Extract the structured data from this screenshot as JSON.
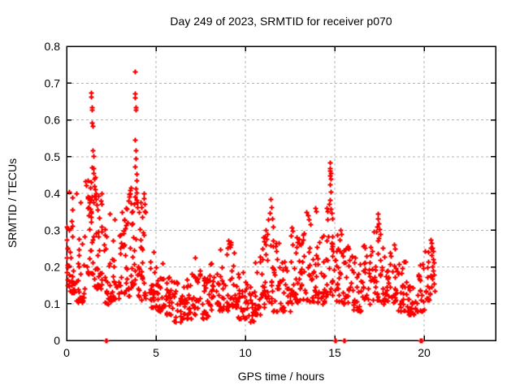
{
  "title": "Day 249 of 2023, SRMTID for receiver p070",
  "x_axis": {
    "label": "GPS time / hours",
    "range": [
      0,
      24
    ],
    "ticks": [
      {
        "v": 0,
        "label": "0"
      },
      {
        "v": 5,
        "label": "5"
      },
      {
        "v": 10,
        "label": "10"
      },
      {
        "v": 15,
        "label": "15"
      },
      {
        "v": 20,
        "label": "20"
      }
    ]
  },
  "y_axis": {
    "label": "SRMTID / TECUs",
    "range": [
      0,
      0.8
    ],
    "ticks": [
      {
        "v": 0,
        "label": "0"
      },
      {
        "v": 0.1,
        "label": "0.1"
      },
      {
        "v": 0.2,
        "label": "0.2"
      },
      {
        "v": 0.3,
        "label": "0.3"
      },
      {
        "v": 0.4,
        "label": "0.4"
      },
      {
        "v": 0.5,
        "label": "0.5"
      },
      {
        "v": 0.6,
        "label": "0.6"
      },
      {
        "v": 0.7,
        "label": "0.7"
      },
      {
        "v": 0.8,
        "label": "0.8"
      }
    ]
  },
  "colors": {
    "marker": "#ff0000",
    "grid": "#b4b4b4",
    "axis": "#000000",
    "text": "#000000",
    "background": "#ffffff"
  },
  "chart_data": {
    "type": "scatter",
    "marker": "plus",
    "title": "Day 249 of 2023, SRMTID for receiver p070",
    "xlabel": "GPS time / hours",
    "ylabel": "SRMTID / TECUs",
    "xlim": [
      0,
      24
    ],
    "ylim": [
      0,
      0.8
    ],
    "grid": true,
    "legend": "none",
    "series_name": "SRMTID",
    "points": [
      [
        0.02,
        0.31
      ],
      [
        0.02,
        0.275
      ],
      [
        0.03,
        0.25
      ],
      [
        0.02,
        0.225
      ],
      [
        0.03,
        0.205
      ],
      [
        0.02,
        0.185
      ],
      [
        0.04,
        0.165
      ],
      [
        0.03,
        0.15
      ],
      [
        0.15,
        0.405
      ],
      [
        0.32,
        0.39
      ],
      [
        0.55,
        0.4
      ],
      [
        0.75,
        0.375
      ],
      [
        1.37,
        0.675
      ],
      [
        1.38,
        0.662
      ],
      [
        1.4,
        0.634
      ],
      [
        1.41,
        0.627
      ],
      [
        1.43,
        0.592
      ],
      [
        1.44,
        0.583
      ],
      [
        1.47,
        0.517
      ],
      [
        1.48,
        0.502
      ],
      [
        1.42,
        0.47
      ],
      [
        1.5,
        0.468
      ],
      [
        1.52,
        0.455
      ],
      [
        1.55,
        0.44
      ],
      [
        1.58,
        0.445
      ],
      [
        1.36,
        0.43
      ],
      [
        1.33,
        0.415
      ],
      [
        1.56,
        0.42
      ],
      [
        1.6,
        0.41
      ],
      [
        1.62,
        0.4
      ],
      [
        1.28,
        0.39
      ],
      [
        1.65,
        0.385
      ],
      [
        1.25,
        0.375
      ],
      [
        1.7,
        0.37
      ],
      [
        1.2,
        0.36
      ],
      [
        1.74,
        0.355
      ],
      [
        2.4,
        0.345
      ],
      [
        2.7,
        0.33
      ],
      [
        3.1,
        0.35
      ],
      [
        3.3,
        0.36
      ],
      [
        3.45,
        0.38
      ],
      [
        3.55,
        0.4
      ],
      [
        3.6,
        0.415
      ],
      [
        3.82,
        0.731
      ],
      [
        3.83,
        0.672
      ],
      [
        3.84,
        0.661
      ],
      [
        3.85,
        0.634
      ],
      [
        3.86,
        0.627
      ],
      [
        3.83,
        0.546
      ],
      [
        3.87,
        0.517
      ],
      [
        3.88,
        0.495
      ],
      [
        3.84,
        0.473
      ],
      [
        3.89,
        0.452
      ],
      [
        3.9,
        0.436
      ],
      [
        3.86,
        0.413
      ],
      [
        3.91,
        0.402
      ],
      [
        3.8,
        0.392
      ],
      [
        3.93,
        0.382
      ],
      [
        3.78,
        0.372
      ],
      [
        3.95,
        0.362
      ],
      [
        3.7,
        0.352
      ],
      [
        4.05,
        0.35
      ],
      [
        4.12,
        0.375
      ],
      [
        4.18,
        0.362
      ],
      [
        4.3,
        0.4
      ],
      [
        4.32,
        0.386
      ],
      [
        4.35,
        0.372
      ],
      [
        4.4,
        0.35
      ],
      [
        7.2,
        0.225
      ],
      [
        9.05,
        0.272
      ],
      [
        9.1,
        0.262
      ],
      [
        9.0,
        0.252
      ],
      [
        10.95,
        0.25
      ],
      [
        11.05,
        0.27
      ],
      [
        11.15,
        0.3
      ],
      [
        11.25,
        0.33
      ],
      [
        11.35,
        0.346
      ],
      [
        11.42,
        0.385
      ],
      [
        11.45,
        0.362
      ],
      [
        11.5,
        0.332
      ],
      [
        11.55,
        0.31
      ],
      [
        12.6,
        0.308
      ],
      [
        12.65,
        0.298
      ],
      [
        12.55,
        0.285
      ],
      [
        13.42,
        0.35
      ],
      [
        13.48,
        0.34
      ],
      [
        13.55,
        0.33
      ],
      [
        13.62,
        0.315
      ],
      [
        13.9,
        0.36
      ],
      [
        13.95,
        0.352
      ],
      [
        14.55,
        0.36
      ],
      [
        14.6,
        0.352
      ],
      [
        14.7,
        0.372
      ],
      [
        14.72,
        0.484
      ],
      [
        14.73,
        0.468
      ],
      [
        14.74,
        0.462
      ],
      [
        14.75,
        0.455
      ],
      [
        14.73,
        0.448
      ],
      [
        14.76,
        0.44
      ],
      [
        14.74,
        0.425
      ],
      [
        14.77,
        0.405
      ],
      [
        14.72,
        0.382
      ],
      [
        14.78,
        0.358
      ],
      [
        14.8,
        0.346
      ],
      [
        14.85,
        0.332
      ],
      [
        15.3,
        0.3
      ],
      [
        15.35,
        0.29
      ],
      [
        17.35,
        0.31
      ],
      [
        17.4,
        0.345
      ],
      [
        17.42,
        0.332
      ],
      [
        17.45,
        0.318
      ],
      [
        17.5,
        0.302
      ],
      [
        17.55,
        0.29
      ],
      [
        18.3,
        0.26
      ],
      [
        18.35,
        0.25
      ],
      [
        20.38,
        0.275
      ],
      [
        20.42,
        0.265
      ],
      [
        20.45,
        0.252
      ],
      [
        20.48,
        0.242
      ],
      [
        20.4,
        0.232
      ],
      [
        20.52,
        0.222
      ],
      [
        20.55,
        0.212
      ],
      [
        20.44,
        0.202
      ],
      [
        20.5,
        0.19
      ],
      [
        20.56,
        0.18
      ],
      [
        20.46,
        0.168
      ],
      [
        20.53,
        0.155
      ],
      [
        20.41,
        0.145
      ],
      [
        20.58,
        0.135
      ]
    ],
    "zero_points": [
      2.18,
      2.22,
      15.0,
      15.05,
      15.5,
      15.55,
      19.78,
      19.82,
      19.86
    ],
    "dense_bands": [
      [
        0.0,
        0.5,
        30,
        0.13,
        0.36
      ],
      [
        0.5,
        1.0,
        26,
        0.1,
        0.3
      ],
      [
        1.0,
        1.5,
        30,
        0.18,
        0.44
      ],
      [
        1.5,
        2.0,
        30,
        0.14,
        0.4
      ],
      [
        2.0,
        2.5,
        26,
        0.1,
        0.33
      ],
      [
        2.5,
        3.0,
        24,
        0.11,
        0.3
      ],
      [
        3.0,
        3.5,
        26,
        0.12,
        0.36
      ],
      [
        3.5,
        4.0,
        30,
        0.14,
        0.42
      ],
      [
        4.0,
        4.5,
        26,
        0.11,
        0.36
      ],
      [
        4.5,
        5.0,
        24,
        0.09,
        0.26
      ],
      [
        5.0,
        5.5,
        24,
        0.08,
        0.22
      ],
      [
        5.5,
        6.0,
        24,
        0.07,
        0.19
      ],
      [
        6.0,
        6.5,
        24,
        0.05,
        0.16
      ],
      [
        6.5,
        7.0,
        24,
        0.06,
        0.17
      ],
      [
        7.0,
        7.5,
        24,
        0.07,
        0.21
      ],
      [
        7.5,
        8.0,
        24,
        0.06,
        0.17
      ],
      [
        8.0,
        8.5,
        24,
        0.08,
        0.22
      ],
      [
        8.5,
        9.0,
        24,
        0.08,
        0.25
      ],
      [
        9.0,
        9.5,
        24,
        0.09,
        0.27
      ],
      [
        9.5,
        10.0,
        24,
        0.06,
        0.19
      ],
      [
        10.0,
        10.5,
        24,
        0.05,
        0.16
      ],
      [
        10.5,
        11.0,
        24,
        0.07,
        0.24
      ],
      [
        11.0,
        11.5,
        26,
        0.09,
        0.32
      ],
      [
        11.5,
        12.0,
        24,
        0.08,
        0.28
      ],
      [
        12.0,
        12.5,
        24,
        0.08,
        0.22
      ],
      [
        12.5,
        13.0,
        24,
        0.1,
        0.28
      ],
      [
        13.0,
        13.5,
        26,
        0.11,
        0.32
      ],
      [
        13.5,
        14.0,
        26,
        0.1,
        0.33
      ],
      [
        14.0,
        14.5,
        24,
        0.1,
        0.3
      ],
      [
        14.5,
        15.0,
        26,
        0.12,
        0.34
      ],
      [
        15.0,
        15.5,
        24,
        0.1,
        0.29
      ],
      [
        15.5,
        16.0,
        24,
        0.1,
        0.27
      ],
      [
        16.0,
        16.5,
        24,
        0.08,
        0.25
      ],
      [
        16.5,
        17.0,
        24,
        0.1,
        0.26
      ],
      [
        17.0,
        17.5,
        26,
        0.11,
        0.3
      ],
      [
        17.5,
        18.0,
        24,
        0.1,
        0.28
      ],
      [
        18.0,
        18.5,
        24,
        0.1,
        0.25
      ],
      [
        18.5,
        19.0,
        24,
        0.08,
        0.22
      ],
      [
        19.0,
        19.5,
        22,
        0.07,
        0.18
      ],
      [
        19.5,
        20.0,
        22,
        0.08,
        0.22
      ],
      [
        20.0,
        20.38,
        18,
        0.11,
        0.26
      ]
    ]
  }
}
